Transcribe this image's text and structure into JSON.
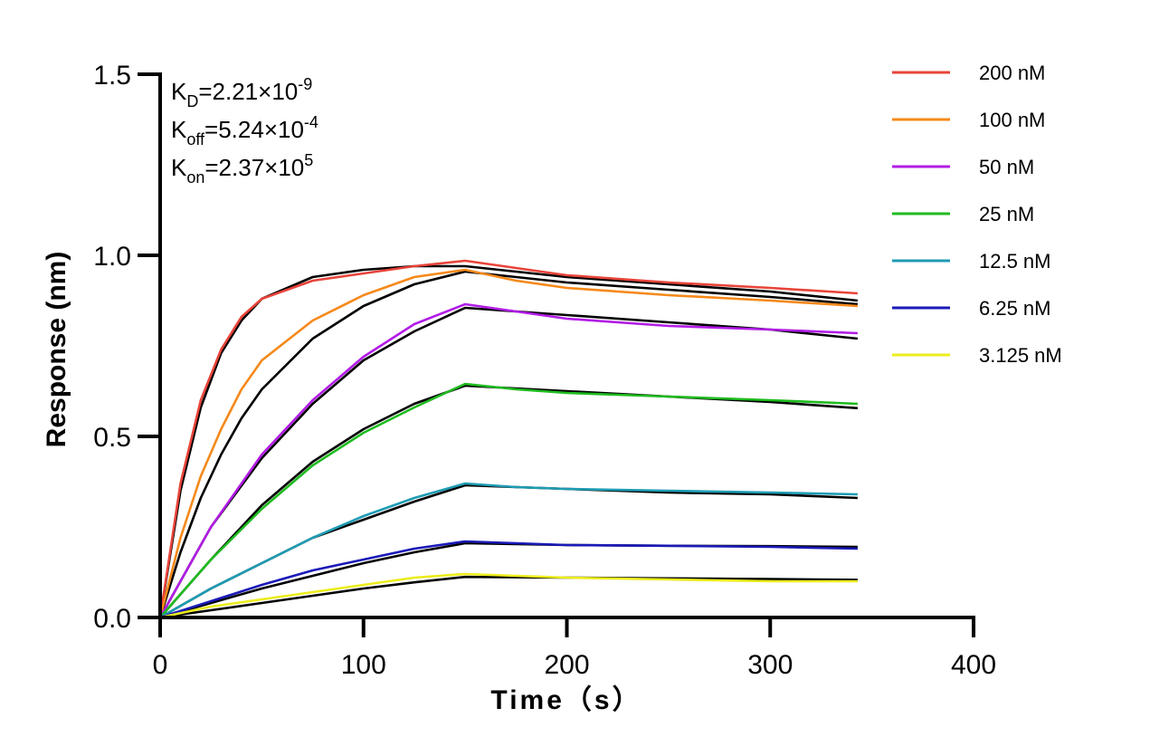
{
  "chart_data": {
    "type": "line",
    "xlabel": "Time（s）",
    "ylabel": "Response (nm)",
    "xlim": [
      0,
      400
    ],
    "ylim": [
      0,
      1.5
    ],
    "x_ticks": [
      "0",
      "100",
      "200",
      "300",
      "400"
    ],
    "y_ticks": [
      "0.0",
      "0.5",
      "1.0",
      "1.5"
    ],
    "grid": false,
    "legend_position": "top-right",
    "association_end_time": 150,
    "experiment_end_time": 343,
    "annotations": [
      {
        "name": "K",
        "sub": "D",
        "value": "=2.21×10",
        "exp": "-9"
      },
      {
        "name": "K",
        "sub": "off",
        "value": "=5.24×10",
        "exp": "-4"
      },
      {
        "name": "K",
        "sub": "on",
        "value": "=2.37×10",
        "exp": "5"
      }
    ],
    "series": [
      {
        "name": "200 nM",
        "color": "#e8443a",
        "x": [
          0,
          10,
          20,
          30,
          40,
          50,
          75,
          100,
          125,
          150,
          175,
          200,
          250,
          300,
          343
        ],
        "y": [
          0,
          0.37,
          0.6,
          0.74,
          0.83,
          0.88,
          0.93,
          0.95,
          0.97,
          0.985,
          0.965,
          0.945,
          0.925,
          0.91,
          0.895
        ]
      },
      {
        "name": "100 nM",
        "color": "#f5891a",
        "x": [
          0,
          10,
          20,
          30,
          40,
          50,
          75,
          100,
          125,
          150,
          175,
          200,
          250,
          300,
          343
        ],
        "y": [
          0,
          0.22,
          0.39,
          0.52,
          0.63,
          0.71,
          0.82,
          0.89,
          0.94,
          0.96,
          0.93,
          0.91,
          0.89,
          0.875,
          0.86
        ]
      },
      {
        "name": "50 nM",
        "color": "#b21ce6",
        "x": [
          0,
          10,
          25,
          50,
          75,
          100,
          125,
          150,
          175,
          200,
          250,
          300,
          343
        ],
        "y": [
          0,
          0.1,
          0.25,
          0.45,
          0.6,
          0.72,
          0.81,
          0.865,
          0.845,
          0.825,
          0.805,
          0.795,
          0.785
        ]
      },
      {
        "name": "25 nM",
        "color": "#1fbb1f",
        "x": [
          0,
          25,
          50,
          75,
          100,
          125,
          150,
          175,
          200,
          250,
          300,
          343
        ],
        "y": [
          0,
          0.16,
          0.3,
          0.42,
          0.51,
          0.58,
          0.645,
          0.63,
          0.62,
          0.61,
          0.6,
          0.59
        ]
      },
      {
        "name": "12.5 nM",
        "color": "#1e9cb3",
        "x": [
          0,
          25,
          50,
          75,
          100,
          125,
          150,
          175,
          200,
          250,
          300,
          343
        ],
        "y": [
          0,
          0.08,
          0.15,
          0.22,
          0.28,
          0.33,
          0.37,
          0.36,
          0.355,
          0.35,
          0.345,
          0.34
        ]
      },
      {
        "name": "6.25 nM",
        "color": "#1a1ab8",
        "x": [
          0,
          25,
          50,
          75,
          100,
          125,
          150,
          175,
          200,
          250,
          300,
          343
        ],
        "y": [
          0,
          0.045,
          0.09,
          0.13,
          0.16,
          0.19,
          0.21,
          0.205,
          0.2,
          0.198,
          0.195,
          0.19
        ]
      },
      {
        "name": "3.125 nM",
        "color": "#ecec1c",
        "x": [
          0,
          25,
          50,
          75,
          100,
          125,
          150,
          175,
          200,
          250,
          300,
          343
        ],
        "y": [
          0,
          0.03,
          0.05,
          0.07,
          0.09,
          0.11,
          0.12,
          0.115,
          0.11,
          0.105,
          0.1,
          0.1
        ]
      }
    ],
    "fits": [
      {
        "color": "#000000",
        "x": [
          0,
          10,
          20,
          30,
          40,
          50,
          75,
          100,
          125,
          150,
          200,
          250,
          300,
          343
        ],
        "y": [
          0,
          0.35,
          0.58,
          0.73,
          0.82,
          0.88,
          0.94,
          0.96,
          0.97,
          0.97,
          0.94,
          0.92,
          0.9,
          0.875
        ]
      },
      {
        "color": "#000000",
        "x": [
          0,
          10,
          20,
          30,
          40,
          50,
          75,
          100,
          125,
          150,
          200,
          250,
          300,
          343
        ],
        "y": [
          0,
          0.18,
          0.33,
          0.45,
          0.55,
          0.63,
          0.77,
          0.86,
          0.92,
          0.955,
          0.925,
          0.905,
          0.885,
          0.865
        ]
      },
      {
        "color": "#000000",
        "x": [
          0,
          25,
          50,
          75,
          100,
          125,
          150,
          200,
          250,
          300,
          343
        ],
        "y": [
          0,
          0.25,
          0.44,
          0.59,
          0.71,
          0.79,
          0.855,
          0.835,
          0.815,
          0.795,
          0.77
        ]
      },
      {
        "color": "#000000",
        "x": [
          0,
          25,
          50,
          75,
          100,
          125,
          150,
          200,
          250,
          300,
          343
        ],
        "y": [
          0,
          0.16,
          0.31,
          0.43,
          0.52,
          0.59,
          0.64,
          0.625,
          0.61,
          0.595,
          0.578
        ]
      },
      {
        "color": "#000000",
        "x": [
          0,
          25,
          50,
          75,
          100,
          125,
          150,
          200,
          250,
          300,
          343
        ],
        "y": [
          0,
          0.08,
          0.15,
          0.22,
          0.27,
          0.32,
          0.365,
          0.355,
          0.345,
          0.34,
          0.33
        ]
      },
      {
        "color": "#000000",
        "x": [
          0,
          25,
          50,
          75,
          100,
          125,
          150,
          200,
          250,
          300,
          343
        ],
        "y": [
          0,
          0.04,
          0.08,
          0.115,
          0.15,
          0.18,
          0.205,
          0.2,
          0.198,
          0.197,
          0.195
        ]
      },
      {
        "color": "#000000",
        "x": [
          0,
          25,
          50,
          75,
          100,
          125,
          150,
          200,
          250,
          300,
          343
        ],
        "y": [
          0,
          0.02,
          0.04,
          0.06,
          0.08,
          0.097,
          0.112,
          0.11,
          0.108,
          0.106,
          0.104
        ]
      }
    ]
  }
}
